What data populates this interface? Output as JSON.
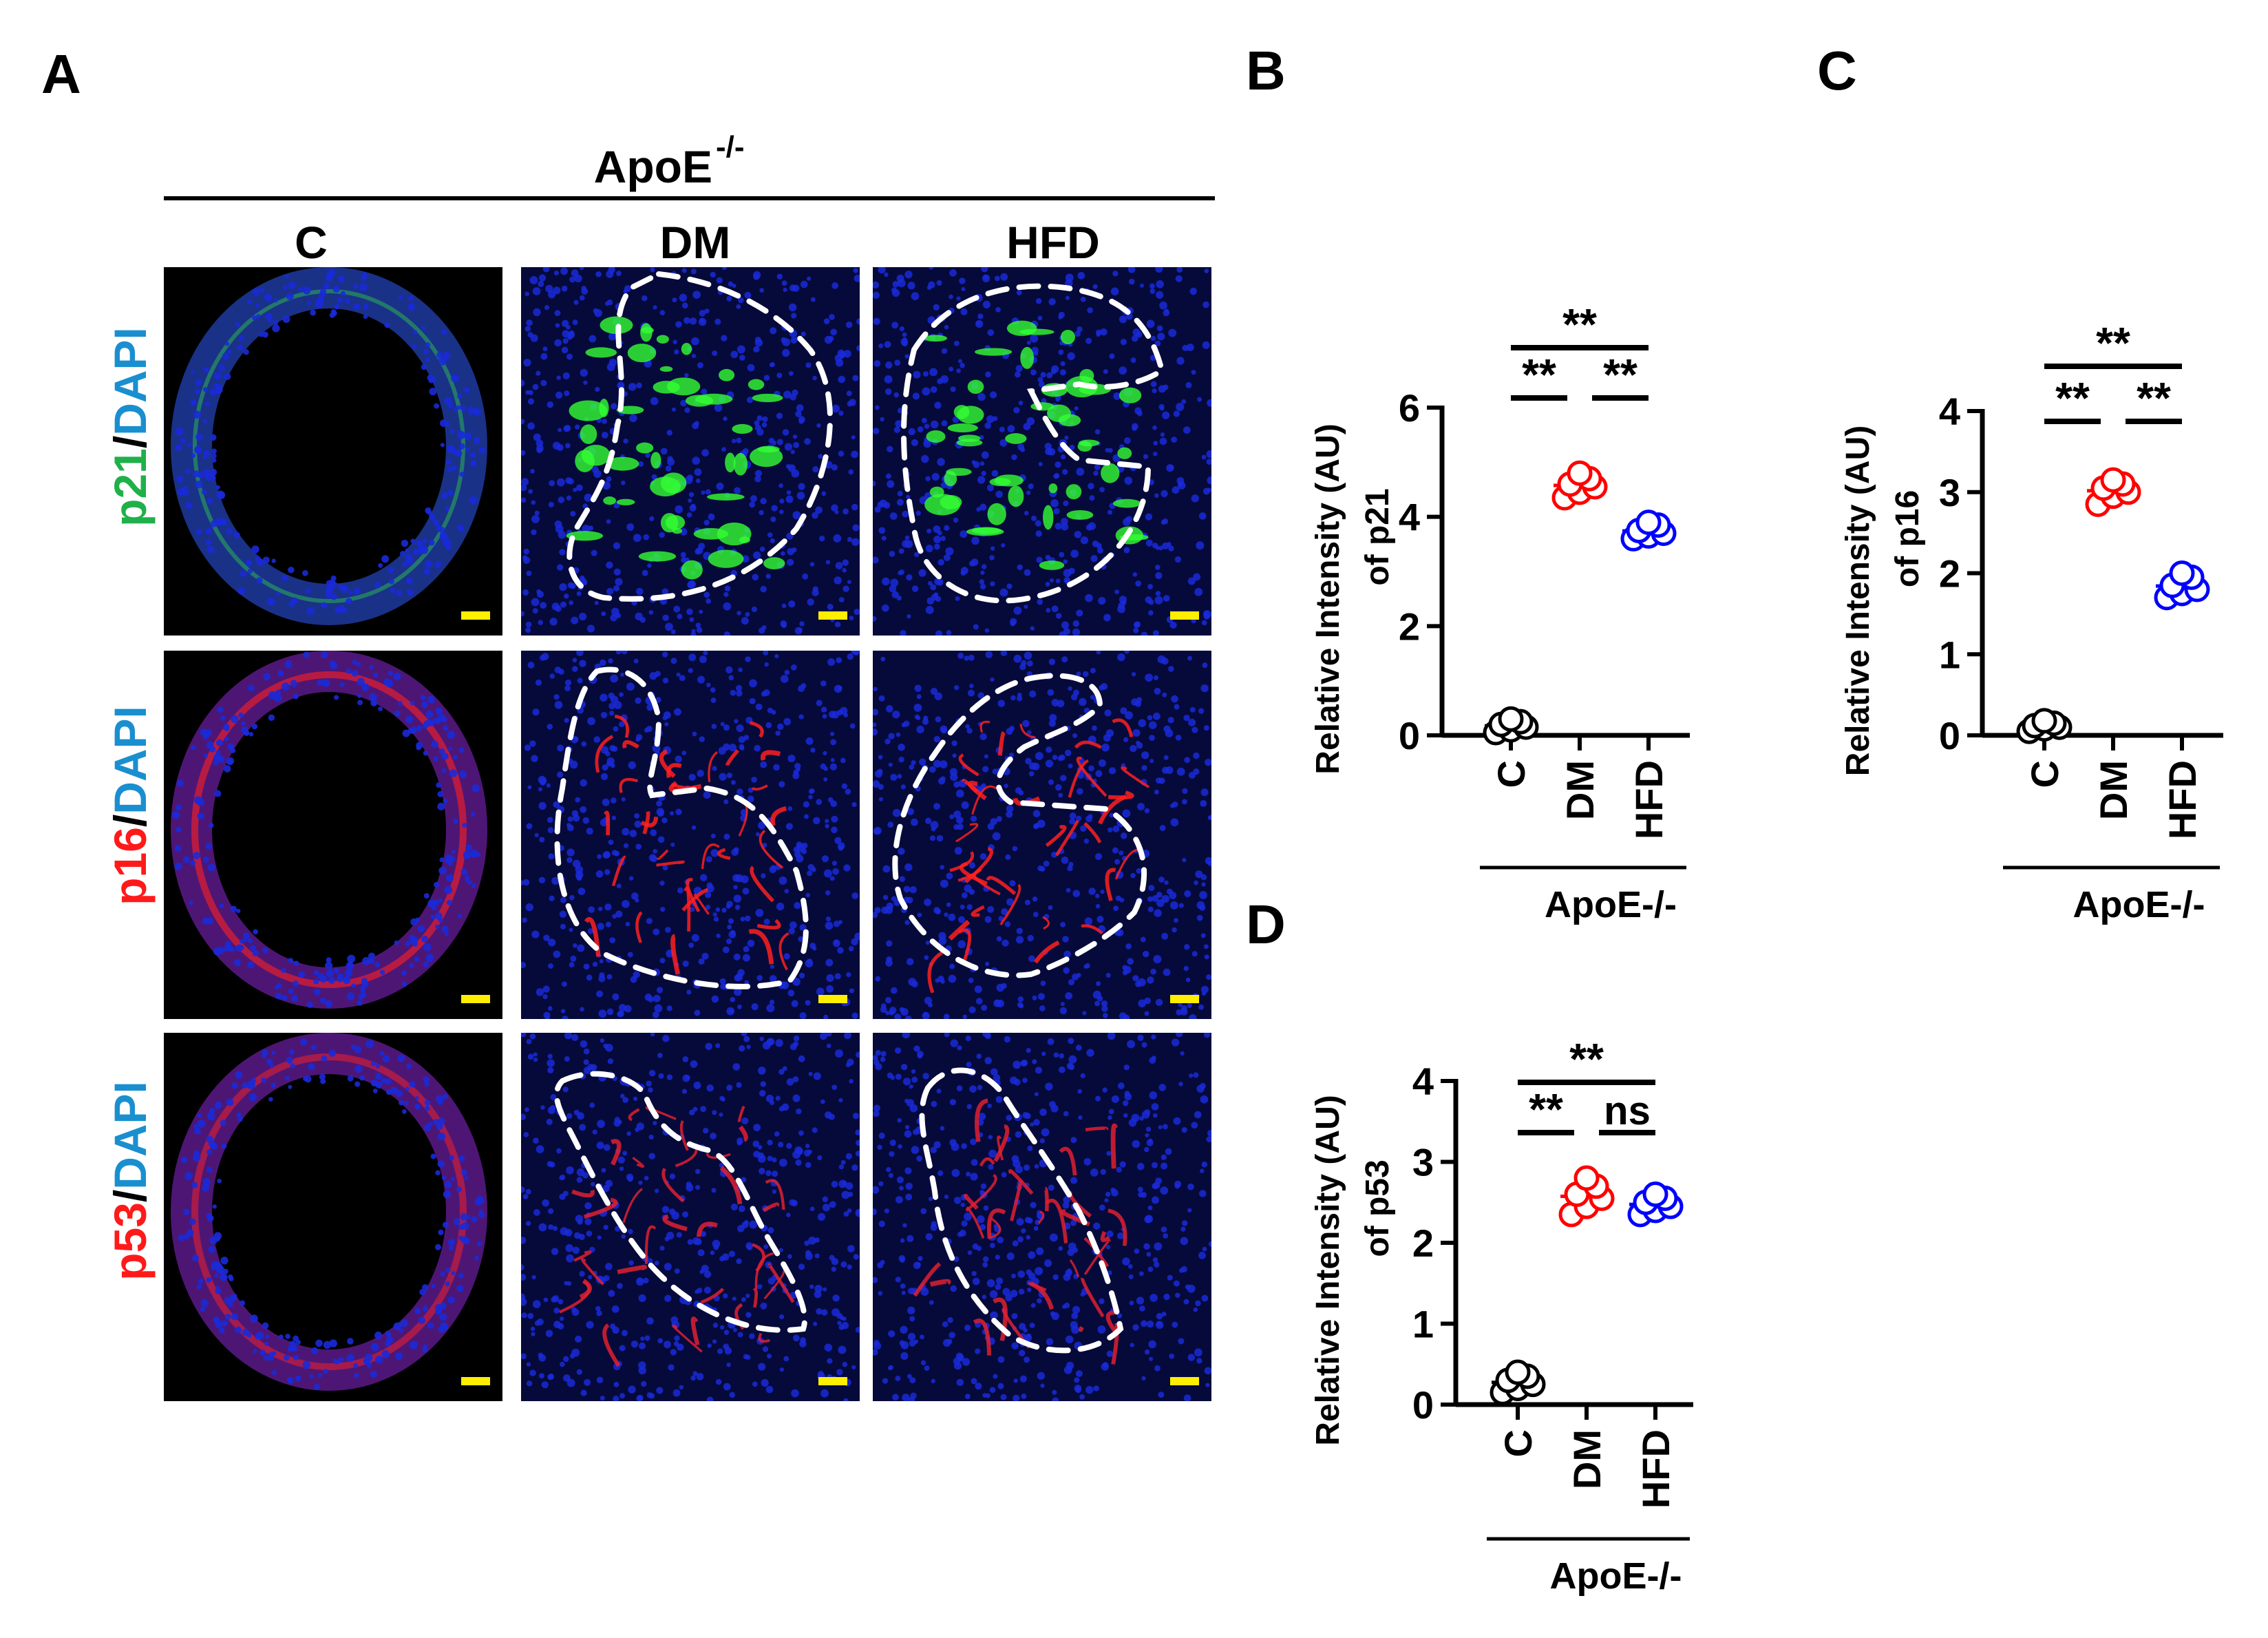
{
  "panel_labels": {
    "a": "A",
    "b": "B",
    "c": "C",
    "d": "D"
  },
  "micrograph": {
    "genotype_label": "ApoE",
    "genotype_superscript": "-/-",
    "columns": [
      "C",
      "DM",
      "HFD"
    ],
    "rows": [
      {
        "marker": "p21",
        "separator": "/",
        "counterstain": "DAPI",
        "marker_color": "#1fb04a",
        "signal_color": "#33ff33"
      },
      {
        "marker": "p16",
        "separator": "/",
        "counterstain": "DAPI",
        "marker_color": "#ff1a1a",
        "signal_color": "#ff2020"
      },
      {
        "marker": "p53",
        "separator": "/",
        "counterstain": "DAPI",
        "marker_color": "#ff1a1a",
        "signal_color": "#e02030"
      }
    ],
    "counterstain_color": "#1a8fd0",
    "nuclei_color": "#1a2ad8",
    "scale_bar_color": "#ffee00",
    "outline": "white dashed boundary around lesion in DM and HFD"
  },
  "chart_data": [
    {
      "panel": "B",
      "type": "scatter",
      "ylabel": "Relative Intensity (AU)",
      "ylabel2": "of p21",
      "ylim": [
        0,
        6
      ],
      "yticks": [
        "0",
        "2",
        "4",
        "6"
      ],
      "categories": [
        "C",
        "DM",
        "HFD"
      ],
      "group_label": "ApoE-/-",
      "series": [
        {
          "category": "C",
          "color": "#000000",
          "values": [
            0.05,
            0.1,
            0.15,
            0.2,
            0.25,
            0.3
          ]
        },
        {
          "category": "DM",
          "color": "#ff0000",
          "values": [
            4.35,
            4.45,
            4.55,
            4.6,
            4.7,
            4.8
          ]
        },
        {
          "category": "HFD",
          "color": "#0000ff",
          "values": [
            3.6,
            3.65,
            3.7,
            3.75,
            3.85,
            3.9
          ]
        }
      ],
      "significance": [
        {
          "from": "C",
          "to": "HFD",
          "label": "**"
        },
        {
          "from": "C",
          "to": "DM",
          "label": "**"
        },
        {
          "from": "DM",
          "to": "HFD",
          "label": "**"
        }
      ]
    },
    {
      "panel": "C",
      "type": "scatter",
      "ylabel": "Relative Intensity (AU)",
      "ylabel2": "of p16",
      "ylim": [
        0,
        4
      ],
      "yticks": [
        "0",
        "1",
        "2",
        "3",
        "4"
      ],
      "categories": [
        "C",
        "DM",
        "HFD"
      ],
      "group_label": "ApoE-/-",
      "series": [
        {
          "category": "C",
          "color": "#000000",
          "values": [
            0.05,
            0.08,
            0.1,
            0.12,
            0.15,
            0.18
          ]
        },
        {
          "category": "DM",
          "color": "#ff0000",
          "values": [
            2.85,
            2.95,
            3.0,
            3.05,
            3.1,
            3.15
          ]
        },
        {
          "category": "HFD",
          "color": "#0000ff",
          "values": [
            1.7,
            1.75,
            1.8,
            1.85,
            1.95,
            2.0
          ]
        }
      ],
      "significance": [
        {
          "from": "C",
          "to": "HFD",
          "label": "**"
        },
        {
          "from": "C",
          "to": "DM",
          "label": "**"
        },
        {
          "from": "DM",
          "to": "HFD",
          "label": "**"
        }
      ]
    },
    {
      "panel": "D",
      "type": "scatter",
      "ylabel": "Relative Intensity (AU)",
      "ylabel2": "of p53",
      "ylim": [
        0,
        4
      ],
      "yticks": [
        "0",
        "1",
        "2",
        "3",
        "4"
      ],
      "categories": [
        "C",
        "DM",
        "HFD"
      ],
      "group_label": "ApoE-/-",
      "series": [
        {
          "category": "C",
          "color": "#000000",
          "values": [
            0.15,
            0.2,
            0.25,
            0.3,
            0.35,
            0.4
          ]
        },
        {
          "category": "DM",
          "color": "#ff0000",
          "values": [
            2.35,
            2.45,
            2.55,
            2.6,
            2.7,
            2.8
          ]
        },
        {
          "category": "HFD",
          "color": "#0000ff",
          "values": [
            2.35,
            2.4,
            2.45,
            2.5,
            2.55,
            2.6
          ]
        }
      ],
      "significance": [
        {
          "from": "C",
          "to": "HFD",
          "label": "**"
        },
        {
          "from": "C",
          "to": "DM",
          "label": "**"
        },
        {
          "from": "DM",
          "to": "HFD",
          "label": "ns"
        }
      ]
    }
  ]
}
